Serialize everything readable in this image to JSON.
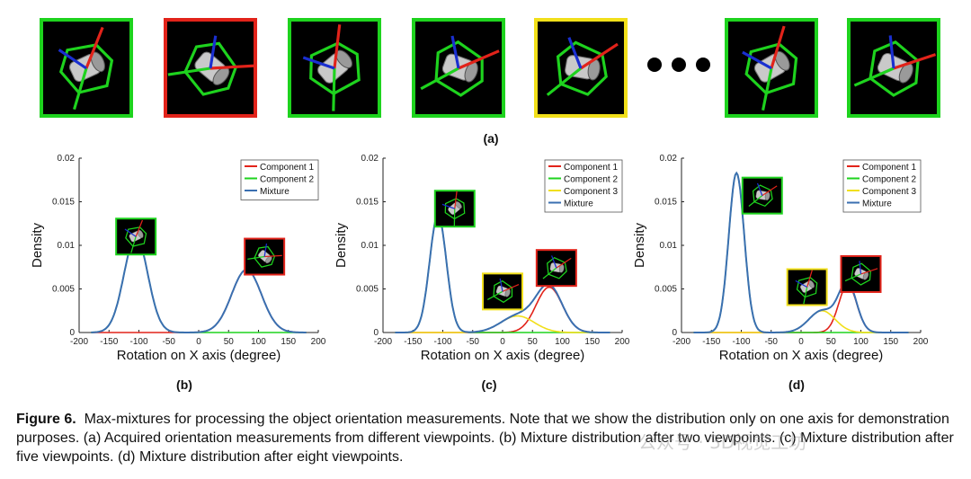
{
  "row_a": {
    "label": "(a)",
    "thumbnails": [
      {
        "border": "green"
      },
      {
        "border": "red"
      },
      {
        "border": "green"
      },
      {
        "border": "green"
      },
      {
        "border": "yellow"
      },
      {
        "border": "green"
      },
      {
        "border": "green"
      }
    ]
  },
  "charts": [
    {
      "label": "(b)",
      "legend": [
        "Component 1",
        "Component 2",
        "Mixture"
      ]
    },
    {
      "label": "(c)",
      "legend": [
        "Component 1",
        "Component 2",
        "Component 3",
        "Mixture"
      ]
    },
    {
      "label": "(d)",
      "legend": [
        "Component 1",
        "Component 2",
        "Component 3",
        "Mixture"
      ]
    }
  ],
  "caption": {
    "prefix": "Figure 6.",
    "text": "Max-mixtures for processing the object orientation measurements. Note that we show the distribution only on one axis for demonstration purposes. (a) Acquired orientation measurements from different viewpoints. (b) Mixture distribution after two viewpoints. (c) Mixture distribution after five viewpoints. (d) Mixture distribution after eight viewpoints."
  },
  "watermark": "公众号 · 3D视觉工坊",
  "colors": {
    "green": "#1ed31e",
    "red": "#e2231a",
    "yellow": "#f1df1a",
    "mixture": "#3a6fb0"
  },
  "chart_data": [
    {
      "type": "line",
      "xlabel": "Rotation on X axis (degree)",
      "ylabel": "Density",
      "xlim": [
        -200,
        200
      ],
      "ylim": [
        0,
        0.02
      ],
      "xticks": [
        -200,
        -150,
        -100,
        -50,
        0,
        50,
        100,
        150,
        200
      ],
      "yticks": [
        0,
        0.005,
        0.01,
        0.015,
        0.02
      ],
      "series": [
        {
          "name": "Component 1",
          "color": "#e2231a",
          "components": [
            {
              "mean": 80,
              "sd": 25,
              "peak": 0.0072
            }
          ]
        },
        {
          "name": "Component 2",
          "color": "#1ed31e",
          "components": [
            {
              "mean": -105,
              "sd": 20,
              "peak": 0.011
            }
          ]
        },
        {
          "name": "Mixture",
          "color": "#3a6fb0",
          "components": [
            {
              "mean": -105,
              "sd": 20,
              "peak": 0.011
            },
            {
              "mean": 80,
              "sd": 25,
              "peak": 0.0072
            }
          ]
        }
      ],
      "insets": [
        {
          "border": "green",
          "x": -105,
          "y": 0.0108
        },
        {
          "border": "red",
          "x": 110,
          "y": 0.0085
        }
      ]
    },
    {
      "type": "line",
      "xlabel": "Rotation on X axis (degree)",
      "ylabel": "Density",
      "xlim": [
        -200,
        200
      ],
      "ylim": [
        0,
        0.02
      ],
      "xticks": [
        -200,
        -150,
        -100,
        -50,
        0,
        50,
        100,
        150,
        200
      ],
      "yticks": [
        0,
        0.005,
        0.01,
        0.015,
        0.02
      ],
      "series": [
        {
          "name": "Component 1",
          "color": "#e2231a",
          "components": [
            {
              "mean": 78,
              "sd": 22,
              "peak": 0.0052
            }
          ]
        },
        {
          "name": "Component 2",
          "color": "#1ed31e",
          "components": [
            {
              "mean": -108,
              "sd": 14,
              "peak": 0.0135
            }
          ]
        },
        {
          "name": "Component 3",
          "color": "#f1df1a",
          "components": [
            {
              "mean": 25,
              "sd": 28,
              "peak": 0.0019
            }
          ]
        },
        {
          "name": "Mixture",
          "color": "#3a6fb0",
          "components": [
            {
              "mean": -108,
              "sd": 14,
              "peak": 0.0135
            },
            {
              "mean": 25,
              "sd": 28,
              "peak": 0.0019
            },
            {
              "mean": 78,
              "sd": 22,
              "peak": 0.0052
            }
          ]
        }
      ],
      "insets": [
        {
          "border": "green",
          "x": -80,
          "y": 0.014
        },
        {
          "border": "yellow",
          "x": 0,
          "y": 0.0045
        },
        {
          "border": "red",
          "x": 90,
          "y": 0.0072
        }
      ]
    },
    {
      "type": "line",
      "xlabel": "Rotation on X axis (degree)",
      "ylabel": "Density",
      "xlim": [
        -200,
        200
      ],
      "ylim": [
        0,
        0.02
      ],
      "xticks": [
        -200,
        -150,
        -100,
        -50,
        0,
        50,
        100,
        150,
        200
      ],
      "yticks": [
        0,
        0.005,
        0.01,
        0.015,
        0.02
      ],
      "series": [
        {
          "name": "Component 1",
          "color": "#e2231a",
          "components": [
            {
              "mean": 78,
              "sd": 15,
              "peak": 0.0055
            }
          ]
        },
        {
          "name": "Component 2",
          "color": "#1ed31e",
          "components": [
            {
              "mean": -108,
              "sd": 13,
              "peak": 0.0183
            }
          ]
        },
        {
          "name": "Component 3",
          "color": "#f1df1a",
          "components": [
            {
              "mean": 35,
              "sd": 22,
              "peak": 0.0025
            }
          ]
        },
        {
          "name": "Mixture",
          "color": "#3a6fb0",
          "components": [
            {
              "mean": -108,
              "sd": 13,
              "peak": 0.0183
            },
            {
              "mean": 35,
              "sd": 22,
              "peak": 0.0025
            },
            {
              "mean": 78,
              "sd": 15,
              "peak": 0.0055
            }
          ]
        }
      ],
      "insets": [
        {
          "border": "green",
          "x": -65,
          "y": 0.0155
        },
        {
          "border": "yellow",
          "x": 10,
          "y": 0.005
        },
        {
          "border": "red",
          "x": 100,
          "y": 0.0065
        }
      ]
    }
  ]
}
